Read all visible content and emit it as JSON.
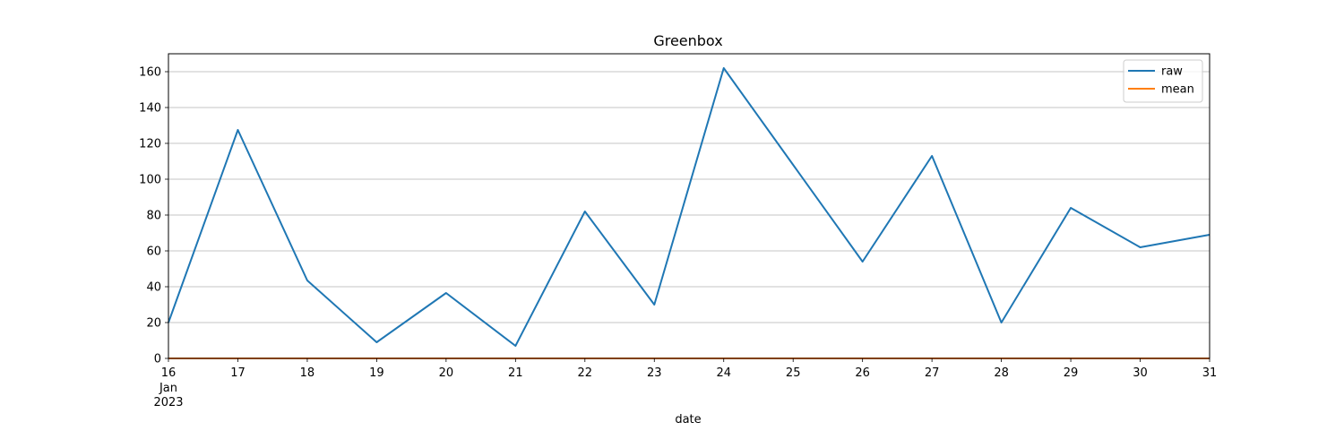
{
  "chart_data": {
    "type": "line",
    "title": "Greenbox",
    "xlabel": "date",
    "ylabel": "",
    "x": [
      "2023-01-16",
      "2023-01-17",
      "2023-01-18",
      "2023-01-19",
      "2023-01-20",
      "2023-01-21",
      "2023-01-22",
      "2023-01-23",
      "2023-01-24",
      "2023-01-25",
      "2023-01-26",
      "2023-01-27",
      "2023-01-28",
      "2023-01-29",
      "2023-01-30",
      "2023-01-31"
    ],
    "x_tick_labels": [
      "16",
      "17",
      "18",
      "19",
      "20",
      "21",
      "22",
      "23",
      "24",
      "25",
      "26",
      "27",
      "28",
      "29",
      "30",
      "31"
    ],
    "x_tick_sublabels": {
      "month": "Jan",
      "year": "2023"
    },
    "ylim": [
      0,
      170
    ],
    "y_ticks": [
      0,
      20,
      40,
      60,
      80,
      100,
      120,
      140,
      160
    ],
    "grid": "y",
    "legend_position": "top-right",
    "series": [
      {
        "name": "raw",
        "color": "#1f77b4",
        "values": [
          20,
          127.5,
          43.5,
          9,
          36.5,
          7,
          82,
          30,
          162,
          108,
          54,
          113,
          20,
          84,
          62,
          69
        ]
      },
      {
        "name": "mean",
        "color": "#ff7f0e",
        "values": [
          0,
          0,
          0,
          0,
          0,
          0,
          0,
          0,
          0,
          0,
          0,
          0,
          0,
          0,
          0,
          0
        ]
      }
    ]
  }
}
